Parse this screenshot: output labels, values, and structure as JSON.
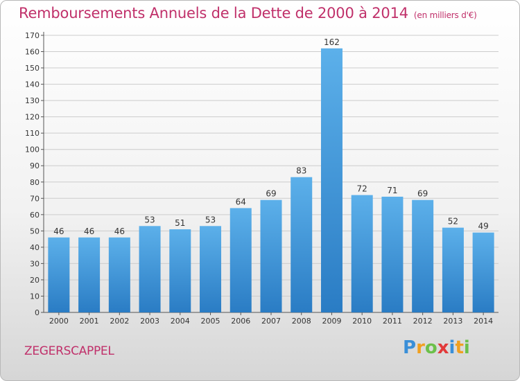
{
  "title": "Remboursements Annuels de la Dette de 2000 à 2014",
  "subtitle": "(en milliers d'€)",
  "place": "ZEGERSCAPPEL",
  "logo": {
    "letters": [
      "P",
      "r",
      "o",
      "x",
      "i",
      "t",
      "i"
    ],
    "colors": [
      "#3a8fd8",
      "#f0a020",
      "#6cc04a",
      "#e23a3a",
      "#3a8fd8",
      "#f0a020",
      "#6cc04a"
    ]
  },
  "colors": {
    "title": "#c0306a",
    "bar_top": "#5cb0ea",
    "bar_bottom": "#2a7cc4",
    "grid": "#cccccc"
  },
  "chart_data": {
    "type": "bar",
    "categories": [
      "2000",
      "2001",
      "2002",
      "2003",
      "2004",
      "2005",
      "2006",
      "2007",
      "2008",
      "2009",
      "2010",
      "2011",
      "2012",
      "2013",
      "2014"
    ],
    "values": [
      46,
      46,
      46,
      53,
      51,
      53,
      64,
      69,
      83,
      162,
      72,
      71,
      69,
      52,
      49
    ],
    "title": "Remboursements Annuels de la Dette de 2000 à 2014",
    "ylim": [
      0,
      170
    ],
    "yticks": [
      0,
      10,
      20,
      30,
      40,
      50,
      60,
      70,
      80,
      90,
      100,
      110,
      120,
      130,
      140,
      150,
      160,
      170
    ],
    "grid": true
  }
}
